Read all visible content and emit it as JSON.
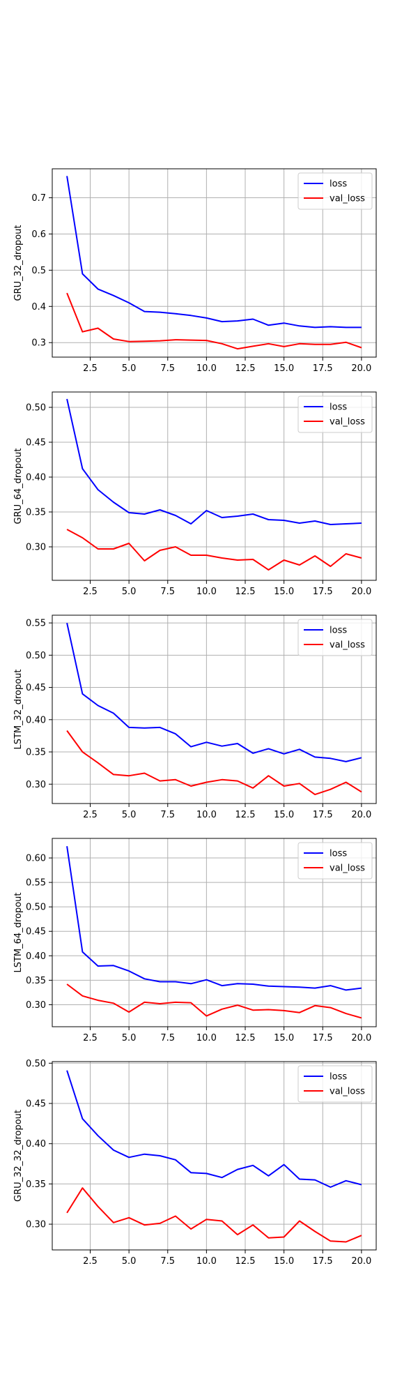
{
  "colors": {
    "loss": "#0000ff",
    "val_loss": "#ff0000",
    "grid": "#b0b0b0",
    "frame": "#000000"
  },
  "chart_data": [
    {
      "type": "line",
      "xlabel": "",
      "ylabel": "GRU_32_dropout",
      "xlim": [
        0.05,
        20.95
      ],
      "ylim": [
        0.26,
        0.78
      ],
      "xticks": [
        2.5,
        5.0,
        7.5,
        10.0,
        12.5,
        15.0,
        17.5,
        20.0
      ],
      "xtick_labels": [
        "2.5",
        "5.0",
        "7.5",
        "10.0",
        "12.5",
        "15.0",
        "17.5",
        "20.0"
      ],
      "yticks": [
        0.3,
        0.4,
        0.5,
        0.6,
        0.7
      ],
      "ytick_labels": [
        "0.3",
        "0.4",
        "0.5",
        "0.6",
        "0.7"
      ],
      "grid": true,
      "legend": "top-right",
      "x": [
        1,
        2,
        3,
        4,
        5,
        6,
        7,
        8,
        9,
        10,
        11,
        12,
        13,
        14,
        15,
        16,
        17,
        18,
        19,
        20
      ],
      "series": [
        {
          "name": "loss",
          "color": "#0000ff",
          "values": [
            0.76,
            0.49,
            0.448,
            0.43,
            0.41,
            0.386,
            0.384,
            0.38,
            0.375,
            0.368,
            0.358,
            0.36,
            0.365,
            0.348,
            0.354,
            0.346,
            0.342,
            0.344,
            0.342,
            0.342
          ]
        },
        {
          "name": "val_loss",
          "color": "#ff0000",
          "values": [
            0.437,
            0.33,
            0.34,
            0.31,
            0.303,
            0.304,
            0.305,
            0.308,
            0.307,
            0.306,
            0.297,
            0.283,
            0.29,
            0.297,
            0.289,
            0.297,
            0.295,
            0.295,
            0.301,
            0.286
          ]
        }
      ]
    },
    {
      "type": "line",
      "xlabel": "",
      "ylabel": "GRU_64_dropout",
      "xlim": [
        0.05,
        20.95
      ],
      "ylim": [
        0.252,
        0.522
      ],
      "xticks": [
        2.5,
        5.0,
        7.5,
        10.0,
        12.5,
        15.0,
        17.5,
        20.0
      ],
      "xtick_labels": [
        "2.5",
        "5.0",
        "7.5",
        "10.0",
        "12.5",
        "15.0",
        "17.5",
        "20.0"
      ],
      "yticks": [
        0.3,
        0.35,
        0.4,
        0.45,
        0.5
      ],
      "ytick_labels": [
        "0.30",
        "0.35",
        "0.40",
        "0.45",
        "0.50"
      ],
      "grid": true,
      "legend": "top-right",
      "x": [
        1,
        2,
        3,
        4,
        5,
        6,
        7,
        8,
        9,
        10,
        11,
        12,
        13,
        14,
        15,
        16,
        17,
        18,
        19,
        20
      ],
      "series": [
        {
          "name": "loss",
          "color": "#0000ff",
          "values": [
            0.512,
            0.412,
            0.382,
            0.364,
            0.349,
            0.347,
            0.353,
            0.345,
            0.333,
            0.352,
            0.342,
            0.344,
            0.347,
            0.339,
            0.338,
            0.334,
            0.337,
            0.332,
            0.333,
            0.334
          ]
        },
        {
          "name": "val_loss",
          "color": "#ff0000",
          "values": [
            0.325,
            0.313,
            0.297,
            0.297,
            0.305,
            0.28,
            0.295,
            0.3,
            0.288,
            0.288,
            0.284,
            0.281,
            0.282,
            0.267,
            0.281,
            0.274,
            0.287,
            0.272,
            0.29,
            0.284
          ]
        }
      ]
    },
    {
      "type": "line",
      "xlabel": "",
      "ylabel": "LSTM_32_dropout",
      "xlim": [
        0.05,
        20.95
      ],
      "ylim": [
        0.27,
        0.562
      ],
      "xticks": [
        2.5,
        5.0,
        7.5,
        10.0,
        12.5,
        15.0,
        17.5,
        20.0
      ],
      "xtick_labels": [
        "2.5",
        "5.0",
        "7.5",
        "10.0",
        "12.5",
        "15.0",
        "17.5",
        "20.0"
      ],
      "yticks": [
        0.3,
        0.35,
        0.4,
        0.45,
        0.5,
        0.55
      ],
      "ytick_labels": [
        "0.30",
        "0.35",
        "0.40",
        "0.45",
        "0.50",
        "0.55"
      ],
      "grid": true,
      "legend": "top-right",
      "x": [
        1,
        2,
        3,
        4,
        5,
        6,
        7,
        8,
        9,
        10,
        11,
        12,
        13,
        14,
        15,
        16,
        17,
        18,
        19,
        20
      ],
      "series": [
        {
          "name": "loss",
          "color": "#0000ff",
          "values": [
            0.55,
            0.44,
            0.422,
            0.41,
            0.388,
            0.387,
            0.388,
            0.378,
            0.358,
            0.365,
            0.359,
            0.363,
            0.348,
            0.355,
            0.347,
            0.354,
            0.342,
            0.34,
            0.335,
            0.341
          ]
        },
        {
          "name": "val_loss",
          "color": "#ff0000",
          "values": [
            0.383,
            0.35,
            0.333,
            0.315,
            0.313,
            0.317,
            0.305,
            0.307,
            0.297,
            0.303,
            0.307,
            0.305,
            0.294,
            0.313,
            0.297,
            0.301,
            0.284,
            0.292,
            0.303,
            0.288
          ]
        }
      ]
    },
    {
      "type": "line",
      "xlabel": "",
      "ylabel": "LSTM_64_dropout",
      "xlim": [
        0.05,
        20.95
      ],
      "ylim": [
        0.255,
        0.64
      ],
      "xticks": [
        2.5,
        5.0,
        7.5,
        10.0,
        12.5,
        15.0,
        17.5,
        20.0
      ],
      "xtick_labels": [
        "2.5",
        "5.0",
        "7.5",
        "10.0",
        "12.5",
        "15.0",
        "17.5",
        "20.0"
      ],
      "yticks": [
        0.3,
        0.35,
        0.4,
        0.45,
        0.5,
        0.55,
        0.6
      ],
      "ytick_labels": [
        "0.30",
        "0.35",
        "0.40",
        "0.45",
        "0.50",
        "0.55",
        "0.60"
      ],
      "grid": true,
      "legend": "top-right",
      "x": [
        1,
        2,
        3,
        4,
        5,
        6,
        7,
        8,
        9,
        10,
        11,
        12,
        13,
        14,
        15,
        16,
        17,
        18,
        19,
        20
      ],
      "series": [
        {
          "name": "loss",
          "color": "#0000ff",
          "values": [
            0.624,
            0.408,
            0.379,
            0.38,
            0.369,
            0.353,
            0.347,
            0.347,
            0.343,
            0.351,
            0.339,
            0.343,
            0.342,
            0.338,
            0.337,
            0.336,
            0.334,
            0.339,
            0.33,
            0.334
          ]
        },
        {
          "name": "val_loss",
          "color": "#ff0000",
          "values": [
            0.342,
            0.318,
            0.309,
            0.303,
            0.285,
            0.305,
            0.302,
            0.305,
            0.304,
            0.277,
            0.291,
            0.299,
            0.289,
            0.29,
            0.288,
            0.284,
            0.298,
            0.294,
            0.282,
            0.273
          ]
        }
      ]
    },
    {
      "type": "line",
      "xlabel": "",
      "ylabel": "GRU_32_32_dropout",
      "xlim": [
        0.05,
        20.95
      ],
      "ylim": [
        0.268,
        0.502
      ],
      "xticks": [
        2.5,
        5.0,
        7.5,
        10.0,
        12.5,
        15.0,
        17.5,
        20.0
      ],
      "xtick_labels": [
        "2.5",
        "5.0",
        "7.5",
        "10.0",
        "12.5",
        "15.0",
        "17.5",
        "20.0"
      ],
      "yticks": [
        0.3,
        0.35,
        0.4,
        0.45,
        0.5
      ],
      "ytick_labels": [
        "0.30",
        "0.35",
        "0.40",
        "0.45",
        "0.50"
      ],
      "grid": true,
      "legend": "top-right",
      "x": [
        1,
        2,
        3,
        4,
        5,
        6,
        7,
        8,
        9,
        10,
        11,
        12,
        13,
        14,
        15,
        16,
        17,
        18,
        19,
        20
      ],
      "series": [
        {
          "name": "loss",
          "color": "#0000ff",
          "values": [
            0.491,
            0.431,
            0.41,
            0.392,
            0.383,
            0.387,
            0.385,
            0.38,
            0.364,
            0.363,
            0.358,
            0.368,
            0.373,
            0.36,
            0.374,
            0.356,
            0.355,
            0.346,
            0.354,
            0.349
          ]
        },
        {
          "name": "val_loss",
          "color": "#ff0000",
          "values": [
            0.314,
            0.345,
            0.322,
            0.302,
            0.308,
            0.299,
            0.301,
            0.31,
            0.294,
            0.306,
            0.304,
            0.287,
            0.299,
            0.283,
            0.284,
            0.304,
            0.291,
            0.279,
            0.278,
            0.286
          ]
        }
      ]
    }
  ]
}
